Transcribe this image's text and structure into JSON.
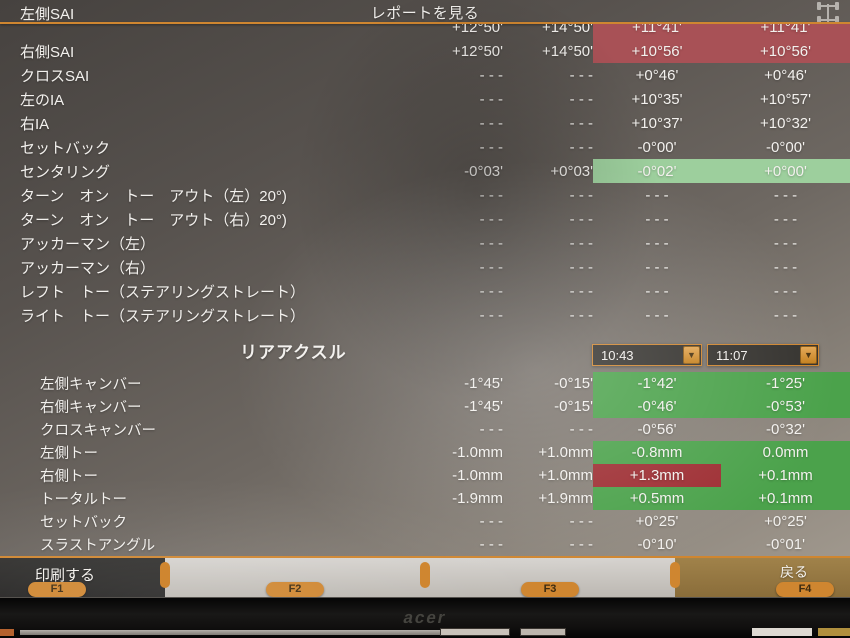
{
  "colors": {
    "accent": "#cf8630",
    "hl_red": "#a85156",
    "hl_red_deep": "#9e2e33",
    "hl_green": "#4ba24b",
    "hl_green_light": "#9dcf9d"
  },
  "header": {
    "title": "レポートを見る",
    "vehicle_icon": "car-top-view-icon"
  },
  "front_rows": [
    {
      "label": "左側SAI",
      "hide_label": true,
      "cells": [
        "+12°50'",
        "+14°50'",
        "+11°41'",
        "+11°41'"
      ],
      "bg": [
        null,
        null,
        "red",
        "red"
      ]
    },
    {
      "label": "右側SAI",
      "cells": [
        "+12°50'",
        "+14°50'",
        "+10°56'",
        "+10°56'"
      ],
      "bg": [
        null,
        null,
        "red",
        "red"
      ]
    },
    {
      "label": "クロスSAI",
      "cells": [
        "- - -",
        "- - -",
        "+0°46'",
        "+0°46'"
      ],
      "bg": [
        null,
        null,
        null,
        null
      ]
    },
    {
      "label": "左のIA",
      "cells": [
        "- - -",
        "- - -",
        "+10°35'",
        "+10°57'"
      ],
      "bg": [
        null,
        null,
        null,
        null
      ]
    },
    {
      "label": "右IA",
      "cells": [
        "- - -",
        "- - -",
        "+10°37'",
        "+10°32'"
      ],
      "bg": [
        null,
        null,
        null,
        null
      ]
    },
    {
      "label": "セットバック",
      "cells": [
        "- - -",
        "- - -",
        "-0°00'",
        "-0°00'"
      ],
      "bg": [
        null,
        null,
        null,
        null
      ]
    },
    {
      "label": "センタリング",
      "cells": [
        "-0°03'",
        "+0°03'",
        "-0°02'",
        "+0°00'"
      ],
      "bg": [
        null,
        null,
        "green-light",
        "green-light"
      ]
    },
    {
      "label": "ターン　オン　トー　アウト（左）20°)",
      "cells": [
        "- - -",
        "- - -",
        "- - -",
        "- - -"
      ],
      "bg": [
        null,
        null,
        null,
        null
      ]
    },
    {
      "label": "ターン　オン　トー　アウト（右）20°)",
      "cells": [
        "- - -",
        "- - -",
        "- - -",
        "- - -"
      ],
      "bg": [
        null,
        null,
        null,
        null
      ]
    },
    {
      "label": "アッカーマン（左）",
      "cells": [
        "- - -",
        "- - -",
        "- - -",
        "- - -"
      ],
      "bg": [
        null,
        null,
        null,
        null
      ]
    },
    {
      "label": "アッカーマン（右）",
      "cells": [
        "- - -",
        "- - -",
        "- - -",
        "- - -"
      ],
      "bg": [
        null,
        null,
        null,
        null
      ]
    },
    {
      "label": "レフト　トー（ステアリングストレート）",
      "cells": [
        "- - -",
        "- - -",
        "- - -",
        "- - -"
      ],
      "bg": [
        null,
        null,
        null,
        null
      ]
    },
    {
      "label": "ライト　トー（ステアリングストレート）",
      "cells": [
        "- - -",
        "- - -",
        "- - -",
        "- - -"
      ],
      "bg": [
        null,
        null,
        null,
        null
      ]
    }
  ],
  "rear_section": {
    "title": "リアアクスル",
    "time_selectors": [
      "10:43",
      "11:07"
    ]
  },
  "rear_rows": [
    {
      "label": "左側キャンバー",
      "cells": [
        "-1°45'",
        "-0°15'",
        "-1°42'",
        "-1°25'"
      ],
      "bg": [
        null,
        null,
        "green",
        "green"
      ]
    },
    {
      "label": "右側キャンバー",
      "cells": [
        "-1°45'",
        "-0°15'",
        "-0°46'",
        "-0°53'"
      ],
      "bg": [
        null,
        null,
        "green",
        "green"
      ]
    },
    {
      "label": "クロスキャンバー",
      "cells": [
        "- - -",
        "- - -",
        "-0°56'",
        "-0°32'"
      ],
      "bg": [
        null,
        null,
        null,
        null
      ]
    },
    {
      "label": "左側トー",
      "cells": [
        "-1.0mm",
        "+1.0mm",
        "-0.8mm",
        "0.0mm"
      ],
      "bg": [
        null,
        null,
        "green",
        "green"
      ]
    },
    {
      "label": "右側トー",
      "cells": [
        "-1.0mm",
        "+1.0mm",
        "+1.3mm",
        "+0.1mm"
      ],
      "bg": [
        null,
        null,
        "red-deep",
        "green"
      ]
    },
    {
      "label": "トータルトー",
      "cells": [
        "-1.9mm",
        "+1.9mm",
        "+0.5mm",
        "+0.1mm"
      ],
      "bg": [
        null,
        null,
        "green",
        "green"
      ]
    },
    {
      "label": "セットバック",
      "cells": [
        "- - -",
        "- - -",
        "+0°25'",
        "+0°25'"
      ],
      "bg": [
        null,
        null,
        null,
        null
      ]
    },
    {
      "label": "スラストアングル",
      "cells": [
        "- - -",
        "- - -",
        "-0°10'",
        "-0°01'"
      ],
      "bg": [
        null,
        null,
        null,
        null
      ]
    }
  ],
  "function_bar": {
    "keys": [
      {
        "key": "F1",
        "label": "印刷する",
        "style": "dark"
      },
      {
        "key": "F2",
        "label": "",
        "style": "light"
      },
      {
        "key": "F3",
        "label": "",
        "style": "light"
      },
      {
        "key": "F4",
        "label": "戻る",
        "style": "tan"
      }
    ]
  },
  "monitor": {
    "brand": "acer"
  }
}
